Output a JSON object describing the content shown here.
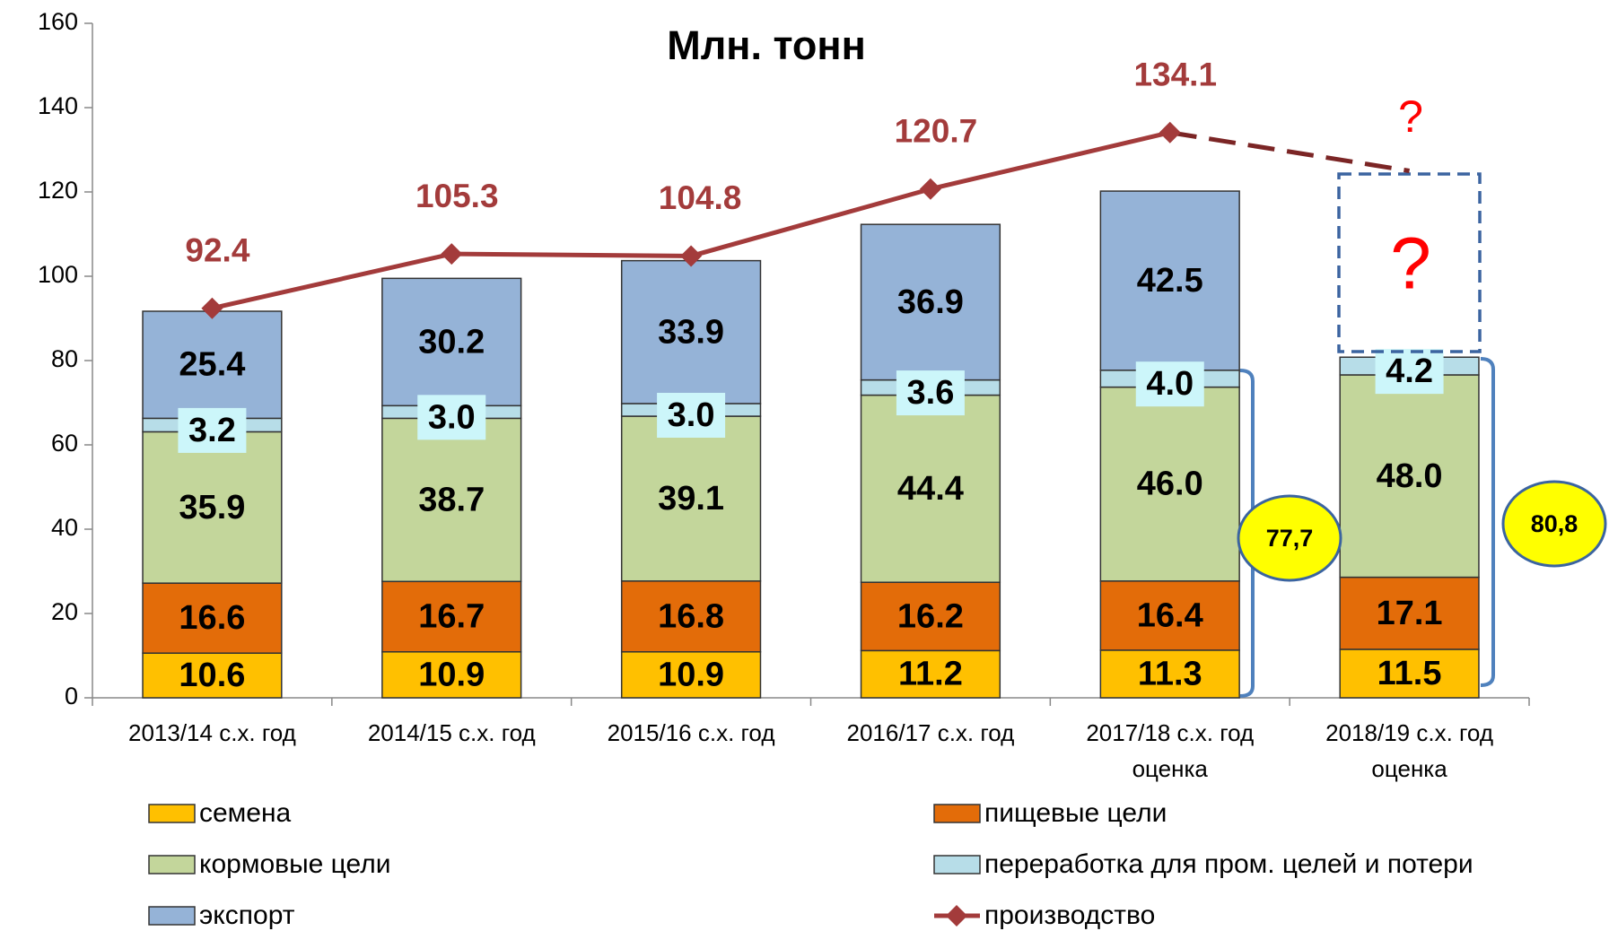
{
  "chart_data": {
    "type": "bar",
    "title": "Млн. тонн",
    "categories": [
      "2013/14 с.х. год",
      "2014/15 с.х. год",
      "2015/16 с.х. год",
      "2016/17 с.х. год",
      "2017/18 с.х. год\nоценка",
      "2018/19 с.х. год\nоценка"
    ],
    "stacked": true,
    "series": [
      {
        "name": "семена",
        "color": "#ffc000",
        "values": [
          10.6,
          10.9,
          10.9,
          11.2,
          11.3,
          11.5
        ],
        "value_labels": [
          "10.6",
          "10.9",
          "10.9",
          "11.2",
          "11.3",
          "11.5"
        ]
      },
      {
        "name": "пищевые цели",
        "color": "#e36c09",
        "values": [
          16.6,
          16.7,
          16.8,
          16.2,
          16.4,
          17.1
        ],
        "value_labels": [
          "16.6",
          "16.7",
          "16.8",
          "16.2",
          "16.4",
          "17.1"
        ]
      },
      {
        "name": "кормовые цели",
        "color": "#c3d69b",
        "values": [
          35.9,
          38.7,
          39.1,
          44.4,
          46,
          48
        ],
        "value_labels": [
          "35.9",
          "38.7",
          "39.1",
          "44.4",
          "46.0",
          "48.0"
        ]
      },
      {
        "name": "переработка для пром. целей и потери",
        "color": "#b7dde8",
        "label_box": "#ccf6fa",
        "values": [
          3.2,
          3,
          3,
          3.6,
          4,
          4.2
        ],
        "value_labels": [
          "3.2",
          "3.0",
          "3.0",
          "3.6",
          "4.0",
          "4.2"
        ]
      },
      {
        "name": "экспорт",
        "color": "#95b3d7",
        "values": [
          25.4,
          30.2,
          33.9,
          36.9,
          42.5,
          null
        ],
        "value_labels": [
          "25.4",
          "30.2",
          "33.9",
          "36.9",
          "42.5",
          null
        ]
      },
      {
        "name": "производство",
        "type": "line",
        "color": "#a33b3b",
        "values": [
          92.4,
          105.3,
          104.8,
          120.7,
          134.1,
          125
        ],
        "value_labels": [
          "92.4",
          "105.3",
          "104.8",
          "120.7",
          "134.1",
          null
        ],
        "dashed_from": 4
      }
    ],
    "annotations": [
      {
        "text": "77,7",
        "category": 4
      },
      {
        "text": "80,8",
        "category": 5
      },
      {
        "text": "?",
        "category": 5
      },
      {
        "text": "?",
        "category": 5
      }
    ],
    "ylim": [
      0,
      160
    ],
    "yticks": [
      0,
      20,
      40,
      60,
      80,
      100,
      120,
      140,
      160
    ],
    "legend": "bottom"
  }
}
